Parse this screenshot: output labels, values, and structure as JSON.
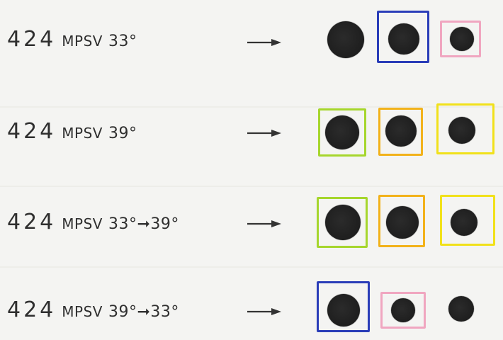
{
  "rows": [
    {
      "number": "424",
      "name": "MPSV",
      "condition": "33°"
    },
    {
      "number": "424",
      "name": "MPSV",
      "condition": "39°"
    },
    {
      "number": "424",
      "name": "MPSV",
      "condition": "33°➞39°"
    },
    {
      "number": "424",
      "name": "MPSV",
      "condition": "39°➞33°"
    }
  ],
  "colors": {
    "background": "#f4f4f2",
    "text": "#2f2f2f",
    "spot": "#222222",
    "blue_box": "#2a3db8",
    "pink_box": "#f0a6c0",
    "green_box": "#a6d62d",
    "orange_box": "#f2b21b",
    "yellow_box": "#f1e11b"
  }
}
